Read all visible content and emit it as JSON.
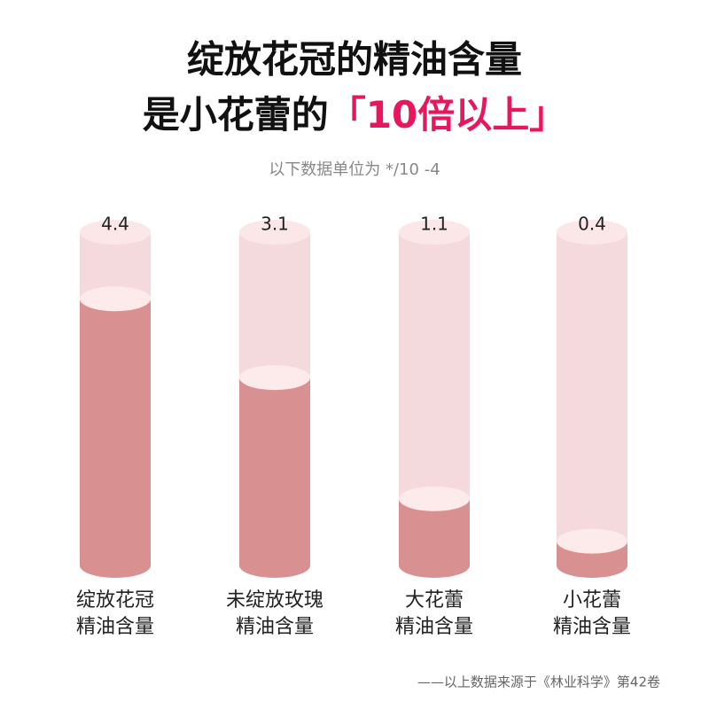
{
  "chart_data": {
    "type": "cylinder-bar",
    "title": [
      "绽放花冠的精油含量",
      "是小花蕾的"
    ],
    "title_highlight": "「10倍以上」",
    "subtitle": "以下数据单位为 */10 -4",
    "categories": [
      [
        "绽放花冠",
        "精油含量"
      ],
      [
        "未绽放玫瑰",
        "精油含量"
      ],
      [
        "大花蕾",
        "精油含量"
      ],
      [
        "小花蕾",
        "精油含量"
      ]
    ],
    "values": [
      4.4,
      3.1,
      1.1,
      0.4
    ],
    "ylim": [
      0,
      5.5
    ],
    "color": "#d99090",
    "source": "——以上数据来源于《林业科学》第42卷"
  }
}
